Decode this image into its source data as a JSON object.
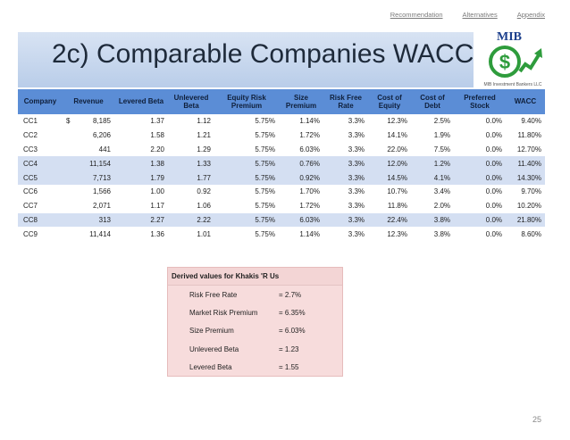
{
  "topnav": [
    "Recommendation",
    "Alternatives",
    "Appendix"
  ],
  "title": "2c) Comparable Companies WACC",
  "logo": {
    "text": "MIB",
    "subtext": "MIB Investment Bankers LLC",
    "brand_color": "#2e9c3c",
    "text_color": "#1c3f8c"
  },
  "table": {
    "columns": [
      "Company",
      "Revenue",
      "Levered Beta",
      "Unlevered Beta",
      "Equity Risk Premium",
      "Size Premium",
      "Risk Free Rate",
      "Cost of Equity",
      "Cost of Debt",
      "Preferred Stock",
      "WACC"
    ],
    "rows": [
      {
        "company": "CC1",
        "currency": "$",
        "revenue": "8,185",
        "levered_beta": "1.37",
        "unlevered_beta": "1.12",
        "erp": "5.75%",
        "size_premium": "1.14%",
        "rfr": "3.3%",
        "cost_equity": "12.3%",
        "cost_debt": "2.5%",
        "preferred": "0.0%",
        "wacc": "9.40%"
      },
      {
        "company": "CC2",
        "currency": "",
        "revenue": "6,206",
        "levered_beta": "1.58",
        "unlevered_beta": "1.21",
        "erp": "5.75%",
        "size_premium": "1.72%",
        "rfr": "3.3%",
        "cost_equity": "14.1%",
        "cost_debt": "1.9%",
        "preferred": "0.0%",
        "wacc": "11.80%"
      },
      {
        "company": "CC3",
        "currency": "",
        "revenue": "441",
        "levered_beta": "2.20",
        "unlevered_beta": "1.29",
        "erp": "5.75%",
        "size_premium": "6.03%",
        "rfr": "3.3%",
        "cost_equity": "22.0%",
        "cost_debt": "7.5%",
        "preferred": "0.0%",
        "wacc": "12.70%"
      },
      {
        "company": "CC4",
        "currency": "",
        "revenue": "11,154",
        "levered_beta": "1.38",
        "unlevered_beta": "1.33",
        "erp": "5.75%",
        "size_premium": "0.76%",
        "rfr": "3.3%",
        "cost_equity": "12.0%",
        "cost_debt": "1.2%",
        "preferred": "0.0%",
        "wacc": "11.40%"
      },
      {
        "company": "CC5",
        "currency": "",
        "revenue": "7,713",
        "levered_beta": "1.79",
        "unlevered_beta": "1.77",
        "erp": "5.75%",
        "size_premium": "0.92%",
        "rfr": "3.3%",
        "cost_equity": "14.5%",
        "cost_debt": "4.1%",
        "preferred": "0.0%",
        "wacc": "14.30%"
      },
      {
        "company": "CC6",
        "currency": "",
        "revenue": "1,566",
        "levered_beta": "1.00",
        "unlevered_beta": "0.92",
        "erp": "5.75%",
        "size_premium": "1.70%",
        "rfr": "3.3%",
        "cost_equity": "10.7%",
        "cost_debt": "3.4%",
        "preferred": "0.0%",
        "wacc": "9.70%"
      },
      {
        "company": "CC7",
        "currency": "",
        "revenue": "2,071",
        "levered_beta": "1.17",
        "unlevered_beta": "1.06",
        "erp": "5.75%",
        "size_premium": "1.72%",
        "rfr": "3.3%",
        "cost_equity": "11.8%",
        "cost_debt": "2.0%",
        "preferred": "0.0%",
        "wacc": "10.20%"
      },
      {
        "company": "CC8",
        "currency": "",
        "revenue": "313",
        "levered_beta": "2.27",
        "unlevered_beta": "2.22",
        "erp": "5.75%",
        "size_premium": "6.03%",
        "rfr": "3.3%",
        "cost_equity": "22.4%",
        "cost_debt": "3.8%",
        "preferred": "0.0%",
        "wacc": "21.80%"
      },
      {
        "company": "CC9",
        "currency": "",
        "revenue": "11,414",
        "levered_beta": "1.36",
        "unlevered_beta": "1.01",
        "erp": "5.75%",
        "size_premium": "1.14%",
        "rfr": "3.3%",
        "cost_equity": "12.3%",
        "cost_debt": "3.8%",
        "preferred": "0.0%",
        "wacc": "8.60%"
      }
    ],
    "shaded_rows": [
      3,
      4,
      7
    ]
  },
  "derived": {
    "title": "Derived values for Khakis 'R Us",
    "items": [
      {
        "label": "Risk Free Rate",
        "value": "= 2.7%"
      },
      {
        "label": "Market Risk Premium",
        "value": "= 6.35%"
      },
      {
        "label": "Size Premium",
        "value": "= 6.03%"
      },
      {
        "label": "Unlevered Beta",
        "value": "= 1.23"
      },
      {
        "label": "Levered Beta",
        "value": "= 1.55"
      }
    ]
  },
  "page_number": "25"
}
